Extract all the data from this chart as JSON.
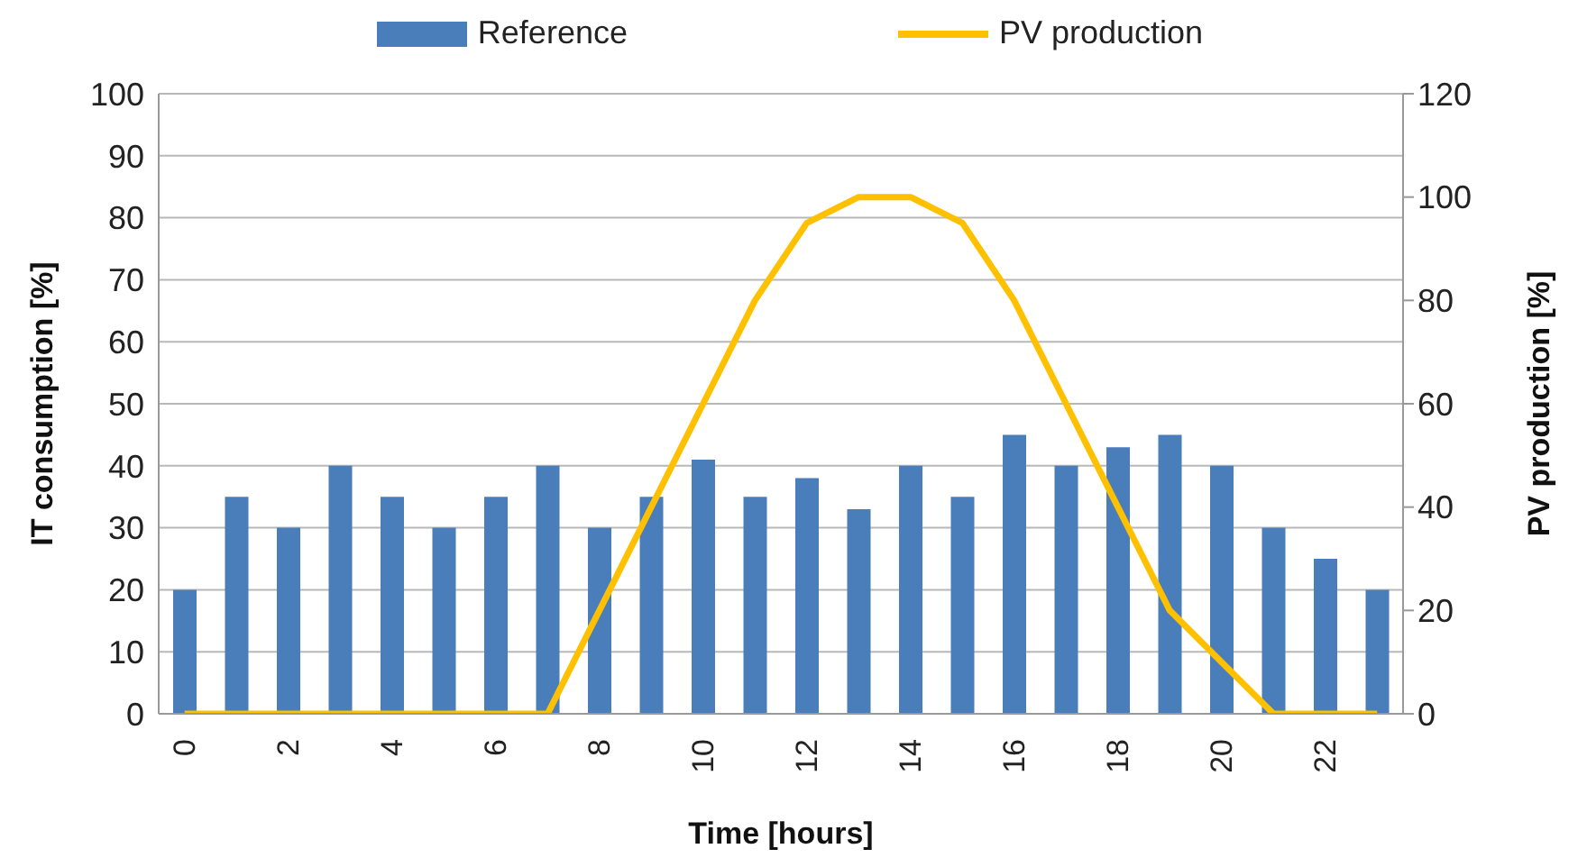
{
  "chart_data": {
    "type": "bar",
    "xlabel": "Time [hours]",
    "ylabel": "IT consumption [%]",
    "y2label": "PV production [%]",
    "categories": [
      "0",
      null,
      "2",
      null,
      "4",
      null,
      "6",
      null,
      "8",
      null,
      "10",
      null,
      "12",
      null,
      "14",
      null,
      "16",
      null,
      "18",
      null,
      "20",
      null,
      "22",
      null
    ],
    "series": [
      {
        "name": "Reference",
        "color": "#4a7ebb",
        "values": [
          20,
          35,
          30,
          40,
          35,
          30,
          35,
          40,
          30,
          35,
          41,
          35,
          38,
          33,
          40,
          35,
          45,
          40,
          43,
          45,
          40,
          30,
          25,
          20
        ]
      },
      {
        "name": "PV production",
        "type": "line",
        "axis": "y2",
        "color": "#ffc000",
        "values": [
          0,
          0,
          0,
          0,
          0,
          0,
          0,
          0,
          20,
          40,
          60,
          80,
          95,
          100,
          100,
          95,
          80,
          60,
          40,
          20,
          10,
          0,
          0,
          0
        ]
      }
    ],
    "ylim": [
      0,
      100
    ],
    "yticks": [
      0,
      10,
      20,
      30,
      40,
      50,
      60,
      70,
      80,
      90,
      100
    ],
    "y2lim": [
      0,
      120
    ],
    "y2ticks": [
      0,
      20,
      40,
      60,
      80,
      100,
      120
    ],
    "grid": "y",
    "legend": "top",
    "marker": "none",
    "line_style": "solid"
  }
}
